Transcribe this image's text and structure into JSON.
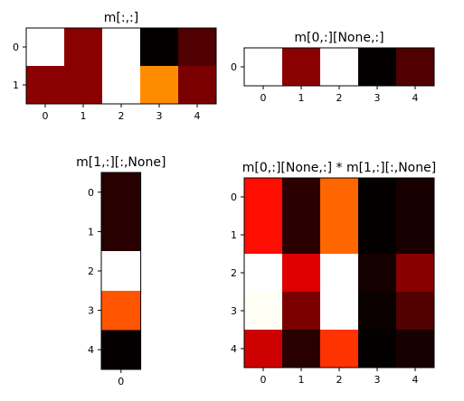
{
  "chart_data": [
    {
      "type": "heatmap",
      "title": "m[:,:]",
      "colormap": "hot",
      "x_ticks": [
        "0",
        "1",
        "2",
        "3",
        "4"
      ],
      "y_ticks": [
        "0",
        "1"
      ],
      "cells": [
        [
          "#ffffff",
          "#8b0000",
          "#ffffff",
          "#050000",
          "#500000"
        ],
        [
          "#8b0000",
          "#8b0000",
          "#ffffff",
          "#ff8c00",
          "#7a0000"
        ]
      ]
    },
    {
      "type": "heatmap",
      "title": "m[0,:][None,:]",
      "colormap": "hot",
      "x_ticks": [
        "0",
        "1",
        "2",
        "3",
        "4"
      ],
      "y_ticks": [
        "0"
      ],
      "cells": [
        [
          "#ffffff",
          "#8b0000",
          "#ffffff",
          "#050000",
          "#500000"
        ]
      ]
    },
    {
      "type": "heatmap",
      "title": "m[1,:][:,None]",
      "colormap": "hot",
      "x_ticks": [
        "0"
      ],
      "y_ticks": [
        "0",
        "1",
        "2",
        "3",
        "4"
      ],
      "cells": [
        [
          "#280000"
        ],
        [
          "#280000"
        ],
        [
          "#ffffff"
        ],
        [
          "#ff5500"
        ],
        [
          "#050000"
        ]
      ]
    },
    {
      "type": "heatmap",
      "title": "m[0,:][None,:] * m[1,:][:,None]",
      "colormap": "hot",
      "x_ticks": [
        "0",
        "1",
        "2",
        "3",
        "4"
      ],
      "y_ticks": [
        "0",
        "1",
        "2",
        "3",
        "4"
      ],
      "cells": [
        [
          "#ff0d00",
          "#2b0000",
          "#ff6600",
          "#050000",
          "#180000"
        ],
        [
          "#ff0d00",
          "#2b0000",
          "#ff6600",
          "#050000",
          "#180000"
        ],
        [
          "#ffffff",
          "#e00000",
          "#ffffff",
          "#150000",
          "#8a0000"
        ],
        [
          "#fffff6",
          "#7a0000",
          "#ffffff",
          "#0a0000",
          "#520000"
        ],
        [
          "#cf0000",
          "#280000",
          "#ff3300",
          "#050000",
          "#180000"
        ]
      ]
    }
  ]
}
